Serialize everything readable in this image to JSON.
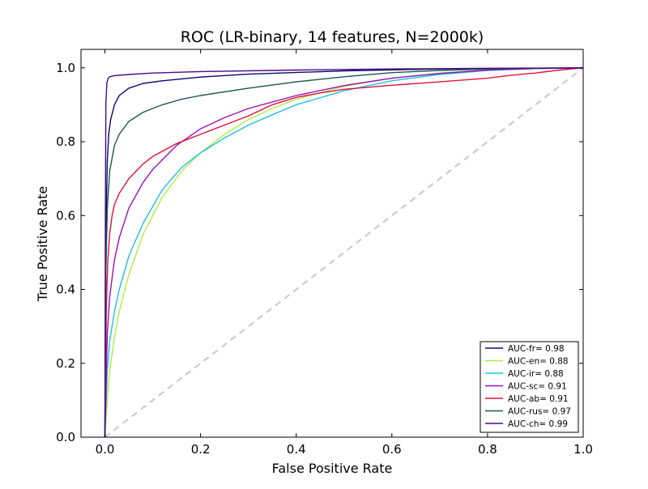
{
  "chart_data": {
    "type": "line",
    "title": "ROC (LR-binary, 14 features, N=2000k)",
    "xlabel": "False Positive Rate",
    "ylabel": "True Positive Rate",
    "xlim": [
      -0.05,
      1.0
    ],
    "ylim": [
      0.0,
      1.05
    ],
    "xticks": [
      "0.0",
      "0.2",
      "0.4",
      "0.6",
      "0.8",
      "1.0"
    ],
    "yticks": [
      "0.0",
      "0.2",
      "0.4",
      "0.6",
      "0.8",
      "1.0"
    ],
    "grid": false,
    "legend_position": "lower-right",
    "diagonal": {
      "x": [
        0.0,
        1.0
      ],
      "y": [
        0.0,
        1.0
      ],
      "color": "#c8c8c8",
      "style": "dashed"
    },
    "series": [
      {
        "name": "AUC-fr= 0.98",
        "color": "#0a0a6e",
        "x": [
          0.0,
          0.002,
          0.005,
          0.008,
          0.012,
          0.02,
          0.03,
          0.05,
          0.08,
          0.12,
          0.2,
          0.3,
          0.5,
          0.7,
          1.0
        ],
        "y": [
          0.0,
          0.55,
          0.75,
          0.82,
          0.86,
          0.9,
          0.925,
          0.945,
          0.958,
          0.965,
          0.975,
          0.983,
          0.992,
          0.997,
          1.0
        ]
      },
      {
        "name": "AUC-en= 0.88",
        "color": "#aaf040",
        "x": [
          0.0,
          0.005,
          0.01,
          0.02,
          0.03,
          0.05,
          0.08,
          0.12,
          0.16,
          0.2,
          0.25,
          0.3,
          0.35,
          0.4,
          0.5,
          0.6,
          0.7,
          0.8,
          0.9,
          1.0
        ],
        "y": [
          0.0,
          0.1,
          0.18,
          0.27,
          0.34,
          0.44,
          0.55,
          0.65,
          0.72,
          0.77,
          0.82,
          0.86,
          0.89,
          0.915,
          0.95,
          0.972,
          0.986,
          0.994,
          0.998,
          1.0
        ]
      },
      {
        "name": "AUC-ir= 0.88",
        "color": "#1ec0e8",
        "x": [
          0.0,
          0.005,
          0.01,
          0.02,
          0.03,
          0.05,
          0.08,
          0.12,
          0.16,
          0.2,
          0.25,
          0.3,
          0.35,
          0.4,
          0.5,
          0.6,
          0.7,
          0.8,
          0.9,
          1.0
        ],
        "y": [
          0.0,
          0.18,
          0.26,
          0.34,
          0.4,
          0.49,
          0.58,
          0.67,
          0.73,
          0.77,
          0.81,
          0.845,
          0.873,
          0.9,
          0.938,
          0.965,
          0.982,
          0.993,
          0.998,
          1.0
        ]
      },
      {
        "name": "AUC-sc= 0.91",
        "color": "#9a10b8",
        "x": [
          0.0,
          0.005,
          0.01,
          0.02,
          0.03,
          0.05,
          0.08,
          0.1,
          0.15,
          0.2,
          0.25,
          0.3,
          0.4,
          0.5,
          0.6,
          0.7,
          0.8,
          0.9,
          1.0
        ],
        "y": [
          0.0,
          0.28,
          0.38,
          0.48,
          0.54,
          0.62,
          0.69,
          0.725,
          0.79,
          0.835,
          0.865,
          0.89,
          0.925,
          0.952,
          0.972,
          0.985,
          0.994,
          0.998,
          1.0
        ]
      },
      {
        "name": "AUC-ab= 0.91",
        "color": "#e0103c",
        "x": [
          0.0,
          0.003,
          0.006,
          0.01,
          0.015,
          0.02,
          0.03,
          0.05,
          0.08,
          0.1,
          0.15,
          0.2,
          0.25,
          0.3,
          0.35,
          0.4,
          0.45,
          0.5,
          0.6,
          0.7,
          0.8,
          0.85,
          0.9,
          0.95,
          1.0
        ],
        "y": [
          0.0,
          0.35,
          0.48,
          0.55,
          0.6,
          0.63,
          0.66,
          0.7,
          0.74,
          0.76,
          0.795,
          0.82,
          0.845,
          0.87,
          0.9,
          0.92,
          0.932,
          0.942,
          0.953,
          0.962,
          0.972,
          0.98,
          0.986,
          0.994,
          1.0
        ]
      },
      {
        "name": "AUC-rus= 0.97",
        "color": "#1a5a4a",
        "x": [
          0.0,
          0.002,
          0.005,
          0.01,
          0.02,
          0.03,
          0.05,
          0.08,
          0.12,
          0.16,
          0.2,
          0.3,
          0.4,
          0.5,
          0.6,
          0.7,
          0.8,
          0.9,
          1.0
        ],
        "y": [
          0.0,
          0.45,
          0.62,
          0.72,
          0.79,
          0.82,
          0.855,
          0.88,
          0.9,
          0.915,
          0.925,
          0.945,
          0.962,
          0.976,
          0.987,
          0.993,
          0.997,
          0.999,
          1.0
        ]
      },
      {
        "name": "AUC-ch= 0.99",
        "color": "#4a0a8a",
        "x": [
          0.0,
          0.001,
          0.002,
          0.004,
          0.007,
          0.01,
          0.02,
          0.05,
          0.1,
          0.2,
          0.4,
          0.6,
          0.8,
          1.0
        ],
        "y": [
          0.0,
          0.6,
          0.9,
          0.96,
          0.972,
          0.976,
          0.979,
          0.982,
          0.986,
          0.99,
          0.994,
          0.997,
          0.999,
          1.0
        ]
      }
    ]
  }
}
